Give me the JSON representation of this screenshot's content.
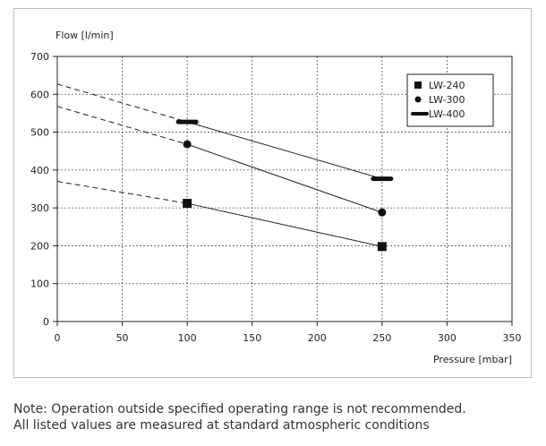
{
  "chart_data": {
    "type": "line",
    "title": "",
    "xlabel": "Pressure [mbar]",
    "ylabel": "Flow [l/min]",
    "xlim": [
      0,
      350
    ],
    "ylim": [
      0,
      700
    ],
    "xticks": [
      0,
      50,
      100,
      150,
      200,
      250,
      300,
      350
    ],
    "yticks": [
      0,
      100,
      200,
      300,
      400,
      500,
      600,
      700
    ],
    "grid": true,
    "legend_position": "top-right",
    "series": [
      {
        "name": "LW-240",
        "marker": "square",
        "x": [
          100,
          250
        ],
        "y": [
          312,
          198
        ],
        "extrapolated_y_at_0": 370
      },
      {
        "name": "LW-300",
        "marker": "circle",
        "x": [
          100,
          250
        ],
        "y": [
          468,
          288
        ],
        "extrapolated_y_at_0": 568
      },
      {
        "name": "LW-400",
        "marker": "dash",
        "x": [
          100,
          250
        ],
        "y": [
          527,
          377
        ],
        "extrapolated_y_at_0": 627
      }
    ]
  },
  "notes": {
    "line1": "Note: Operation outside specified operating range is not recommended.",
    "line2": "All listed values are measured at standard atmospheric conditions"
  }
}
